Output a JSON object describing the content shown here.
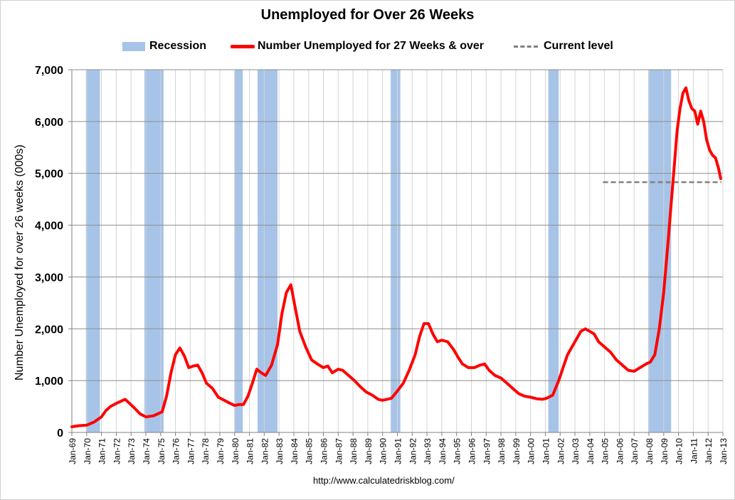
{
  "chart_data": {
    "type": "line",
    "title": "Unemployed for Over 26 Weeks",
    "ylabel": "Number Unemployed for over 26 weeks (000s)",
    "xlabel": "",
    "ylim": [
      0,
      7000
    ],
    "yticks": [
      "0",
      "1,000",
      "2,000",
      "3,000",
      "4,000",
      "5,000",
      "6,000",
      "7,000"
    ],
    "xlim": [
      1969.0,
      2013.0
    ],
    "xticks": [
      "Jan-69",
      "Jan-70",
      "Jan-71",
      "Jan-72",
      "Jan-73",
      "Jan-74",
      "Jan-75",
      "Jan-76",
      "Jan-77",
      "Jan-78",
      "Jan-79",
      "Jan-80",
      "Jan-81",
      "Jan-82",
      "Jan-83",
      "Jan-84",
      "Jan-85",
      "Jan-86",
      "Jan-87",
      "Jan-88",
      "Jan-89",
      "Jan-90",
      "Jan-91",
      "Jan-92",
      "Jan-93",
      "Jan-94",
      "Jan-95",
      "Jan-96",
      "Jan-97",
      "Jan-98",
      "Jan-99",
      "Jan-00",
      "Jan-01",
      "Jan-02",
      "Jan-03",
      "Jan-04",
      "Jan-05",
      "Jan-06",
      "Jan-07",
      "Jan-08",
      "Jan-09",
      "Jan-10",
      "Jan-11",
      "Jan-12",
      "Jan-13"
    ],
    "grid": true,
    "legend_position": "top",
    "legend": [
      {
        "label": "Recession",
        "kind": "band",
        "color": "#a7c4e8"
      },
      {
        "label": "Number Unemployed for 27 Weeks & over",
        "kind": "line",
        "color": "#ff0000"
      },
      {
        "label": "Current level",
        "kind": "dashed",
        "color": "#808080"
      }
    ],
    "recessions": [
      [
        1969.95,
        1970.9
      ],
      [
        1973.9,
        1975.2
      ],
      [
        1980.0,
        1980.55
      ],
      [
        1981.55,
        1982.9
      ],
      [
        1990.55,
        1991.2
      ],
      [
        2001.2,
        2001.9
      ],
      [
        2007.95,
        2009.5
      ]
    ],
    "current_level": {
      "value": 4830,
      "x_start": 2004.9,
      "x_end": 2012.9
    },
    "series": [
      {
        "name": "Number Unemployed for 27 Weeks & over",
        "color": "#ff0000",
        "points": [
          [
            1969.0,
            110
          ],
          [
            1969.5,
            130
          ],
          [
            1970.0,
            140
          ],
          [
            1970.5,
            200
          ],
          [
            1971.0,
            300
          ],
          [
            1971.3,
            420
          ],
          [
            1971.6,
            500
          ],
          [
            1972.0,
            560
          ],
          [
            1972.3,
            600
          ],
          [
            1972.6,
            640
          ],
          [
            1972.9,
            560
          ],
          [
            1973.2,
            480
          ],
          [
            1973.6,
            360
          ],
          [
            1974.0,
            300
          ],
          [
            1974.5,
            320
          ],
          [
            1974.9,
            370
          ],
          [
            1975.1,
            400
          ],
          [
            1975.4,
            700
          ],
          [
            1975.7,
            1150
          ],
          [
            1976.0,
            1500
          ],
          [
            1976.3,
            1630
          ],
          [
            1976.6,
            1480
          ],
          [
            1976.9,
            1250
          ],
          [
            1977.2,
            1280
          ],
          [
            1977.5,
            1300
          ],
          [
            1977.8,
            1150
          ],
          [
            1978.1,
            950
          ],
          [
            1978.5,
            850
          ],
          [
            1978.9,
            680
          ],
          [
            1979.3,
            620
          ],
          [
            1979.7,
            560
          ],
          [
            1980.0,
            520
          ],
          [
            1980.3,
            540
          ],
          [
            1980.6,
            540
          ],
          [
            1980.9,
            700
          ],
          [
            1981.2,
            950
          ],
          [
            1981.5,
            1220
          ],
          [
            1981.8,
            1150
          ],
          [
            1982.1,
            1100
          ],
          [
            1982.5,
            1300
          ],
          [
            1982.9,
            1700
          ],
          [
            1983.2,
            2300
          ],
          [
            1983.5,
            2700
          ],
          [
            1983.8,
            2850
          ],
          [
            1984.1,
            2400
          ],
          [
            1984.4,
            1950
          ],
          [
            1984.8,
            1650
          ],
          [
            1985.2,
            1400
          ],
          [
            1985.6,
            1320
          ],
          [
            1986.0,
            1250
          ],
          [
            1986.3,
            1280
          ],
          [
            1986.6,
            1150
          ],
          [
            1987.0,
            1220
          ],
          [
            1987.3,
            1200
          ],
          [
            1987.7,
            1100
          ],
          [
            1988.1,
            1000
          ],
          [
            1988.5,
            880
          ],
          [
            1988.9,
            780
          ],
          [
            1989.3,
            720
          ],
          [
            1989.7,
            640
          ],
          [
            1990.0,
            620
          ],
          [
            1990.3,
            640
          ],
          [
            1990.6,
            660
          ],
          [
            1991.0,
            800
          ],
          [
            1991.4,
            950
          ],
          [
            1991.8,
            1200
          ],
          [
            1992.2,
            1500
          ],
          [
            1992.5,
            1850
          ],
          [
            1992.8,
            2100
          ],
          [
            1993.1,
            2100
          ],
          [
            1993.4,
            1900
          ],
          [
            1993.7,
            1750
          ],
          [
            1994.0,
            1780
          ],
          [
            1994.4,
            1750
          ],
          [
            1994.8,
            1600
          ],
          [
            1995.1,
            1450
          ],
          [
            1995.4,
            1320
          ],
          [
            1995.8,
            1250
          ],
          [
            1996.2,
            1250
          ],
          [
            1996.6,
            1300
          ],
          [
            1996.9,
            1320
          ],
          [
            1997.2,
            1200
          ],
          [
            1997.6,
            1100
          ],
          [
            1998.0,
            1050
          ],
          [
            1998.4,
            950
          ],
          [
            1998.8,
            850
          ],
          [
            1999.2,
            750
          ],
          [
            1999.6,
            700
          ],
          [
            2000.0,
            680
          ],
          [
            2000.4,
            650
          ],
          [
            2000.8,
            640
          ],
          [
            2001.1,
            660
          ],
          [
            2001.5,
            720
          ],
          [
            2001.9,
            1000
          ],
          [
            2002.2,
            1250
          ],
          [
            2002.5,
            1500
          ],
          [
            2002.8,
            1650
          ],
          [
            2003.1,
            1800
          ],
          [
            2003.4,
            1950
          ],
          [
            2003.7,
            2000
          ],
          [
            2004.0,
            1950
          ],
          [
            2004.3,
            1900
          ],
          [
            2004.6,
            1750
          ],
          [
            2005.0,
            1650
          ],
          [
            2005.4,
            1550
          ],
          [
            2005.8,
            1400
          ],
          [
            2006.2,
            1300
          ],
          [
            2006.6,
            1200
          ],
          [
            2007.0,
            1180
          ],
          [
            2007.4,
            1250
          ],
          [
            2007.8,
            1320
          ],
          [
            2008.1,
            1360
          ],
          [
            2008.4,
            1500
          ],
          [
            2008.7,
            2000
          ],
          [
            2009.0,
            2700
          ],
          [
            2009.3,
            3700
          ],
          [
            2009.5,
            4400
          ],
          [
            2009.7,
            5100
          ],
          [
            2009.9,
            5800
          ],
          [
            2010.1,
            6250
          ],
          [
            2010.3,
            6550
          ],
          [
            2010.5,
            6650
          ],
          [
            2010.7,
            6400
          ],
          [
            2010.9,
            6250
          ],
          [
            2011.1,
            6200
          ],
          [
            2011.3,
            5950
          ],
          [
            2011.5,
            6200
          ],
          [
            2011.7,
            6000
          ],
          [
            2011.9,
            5650
          ],
          [
            2012.1,
            5450
          ],
          [
            2012.3,
            5350
          ],
          [
            2012.5,
            5300
          ],
          [
            2012.7,
            5100
          ],
          [
            2012.85,
            4900
          ]
        ]
      }
    ]
  },
  "source": "http://www.calculatedriskblog.com/"
}
